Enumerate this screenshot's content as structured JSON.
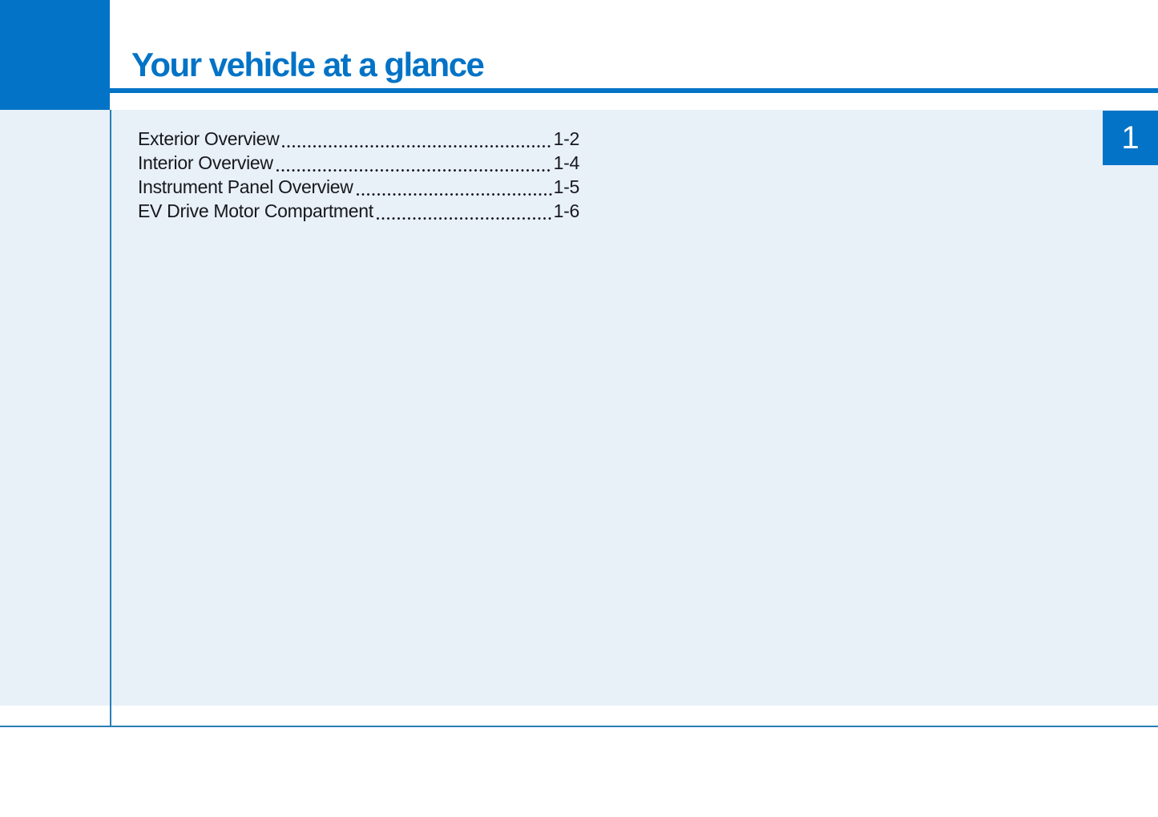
{
  "header": {
    "title": "Your vehicle at a glance"
  },
  "chapter_tab": {
    "number": "1"
  },
  "toc": {
    "items": [
      {
        "label": "Exterior Overview",
        "page": "1-2"
      },
      {
        "label": "Interior Overview",
        "page": "1-4"
      },
      {
        "label": "Instrument Panel Overview",
        "page": "1-5"
      },
      {
        "label": "EV Drive Motor Compartment",
        "page": "1-6"
      }
    ]
  },
  "colors": {
    "accent_blue": "#0273c6",
    "panel_blue": "#e8f0f8",
    "rule_blue": "#2a7db4",
    "text_dark": "#17181c",
    "tab_number": "#ffffff"
  }
}
